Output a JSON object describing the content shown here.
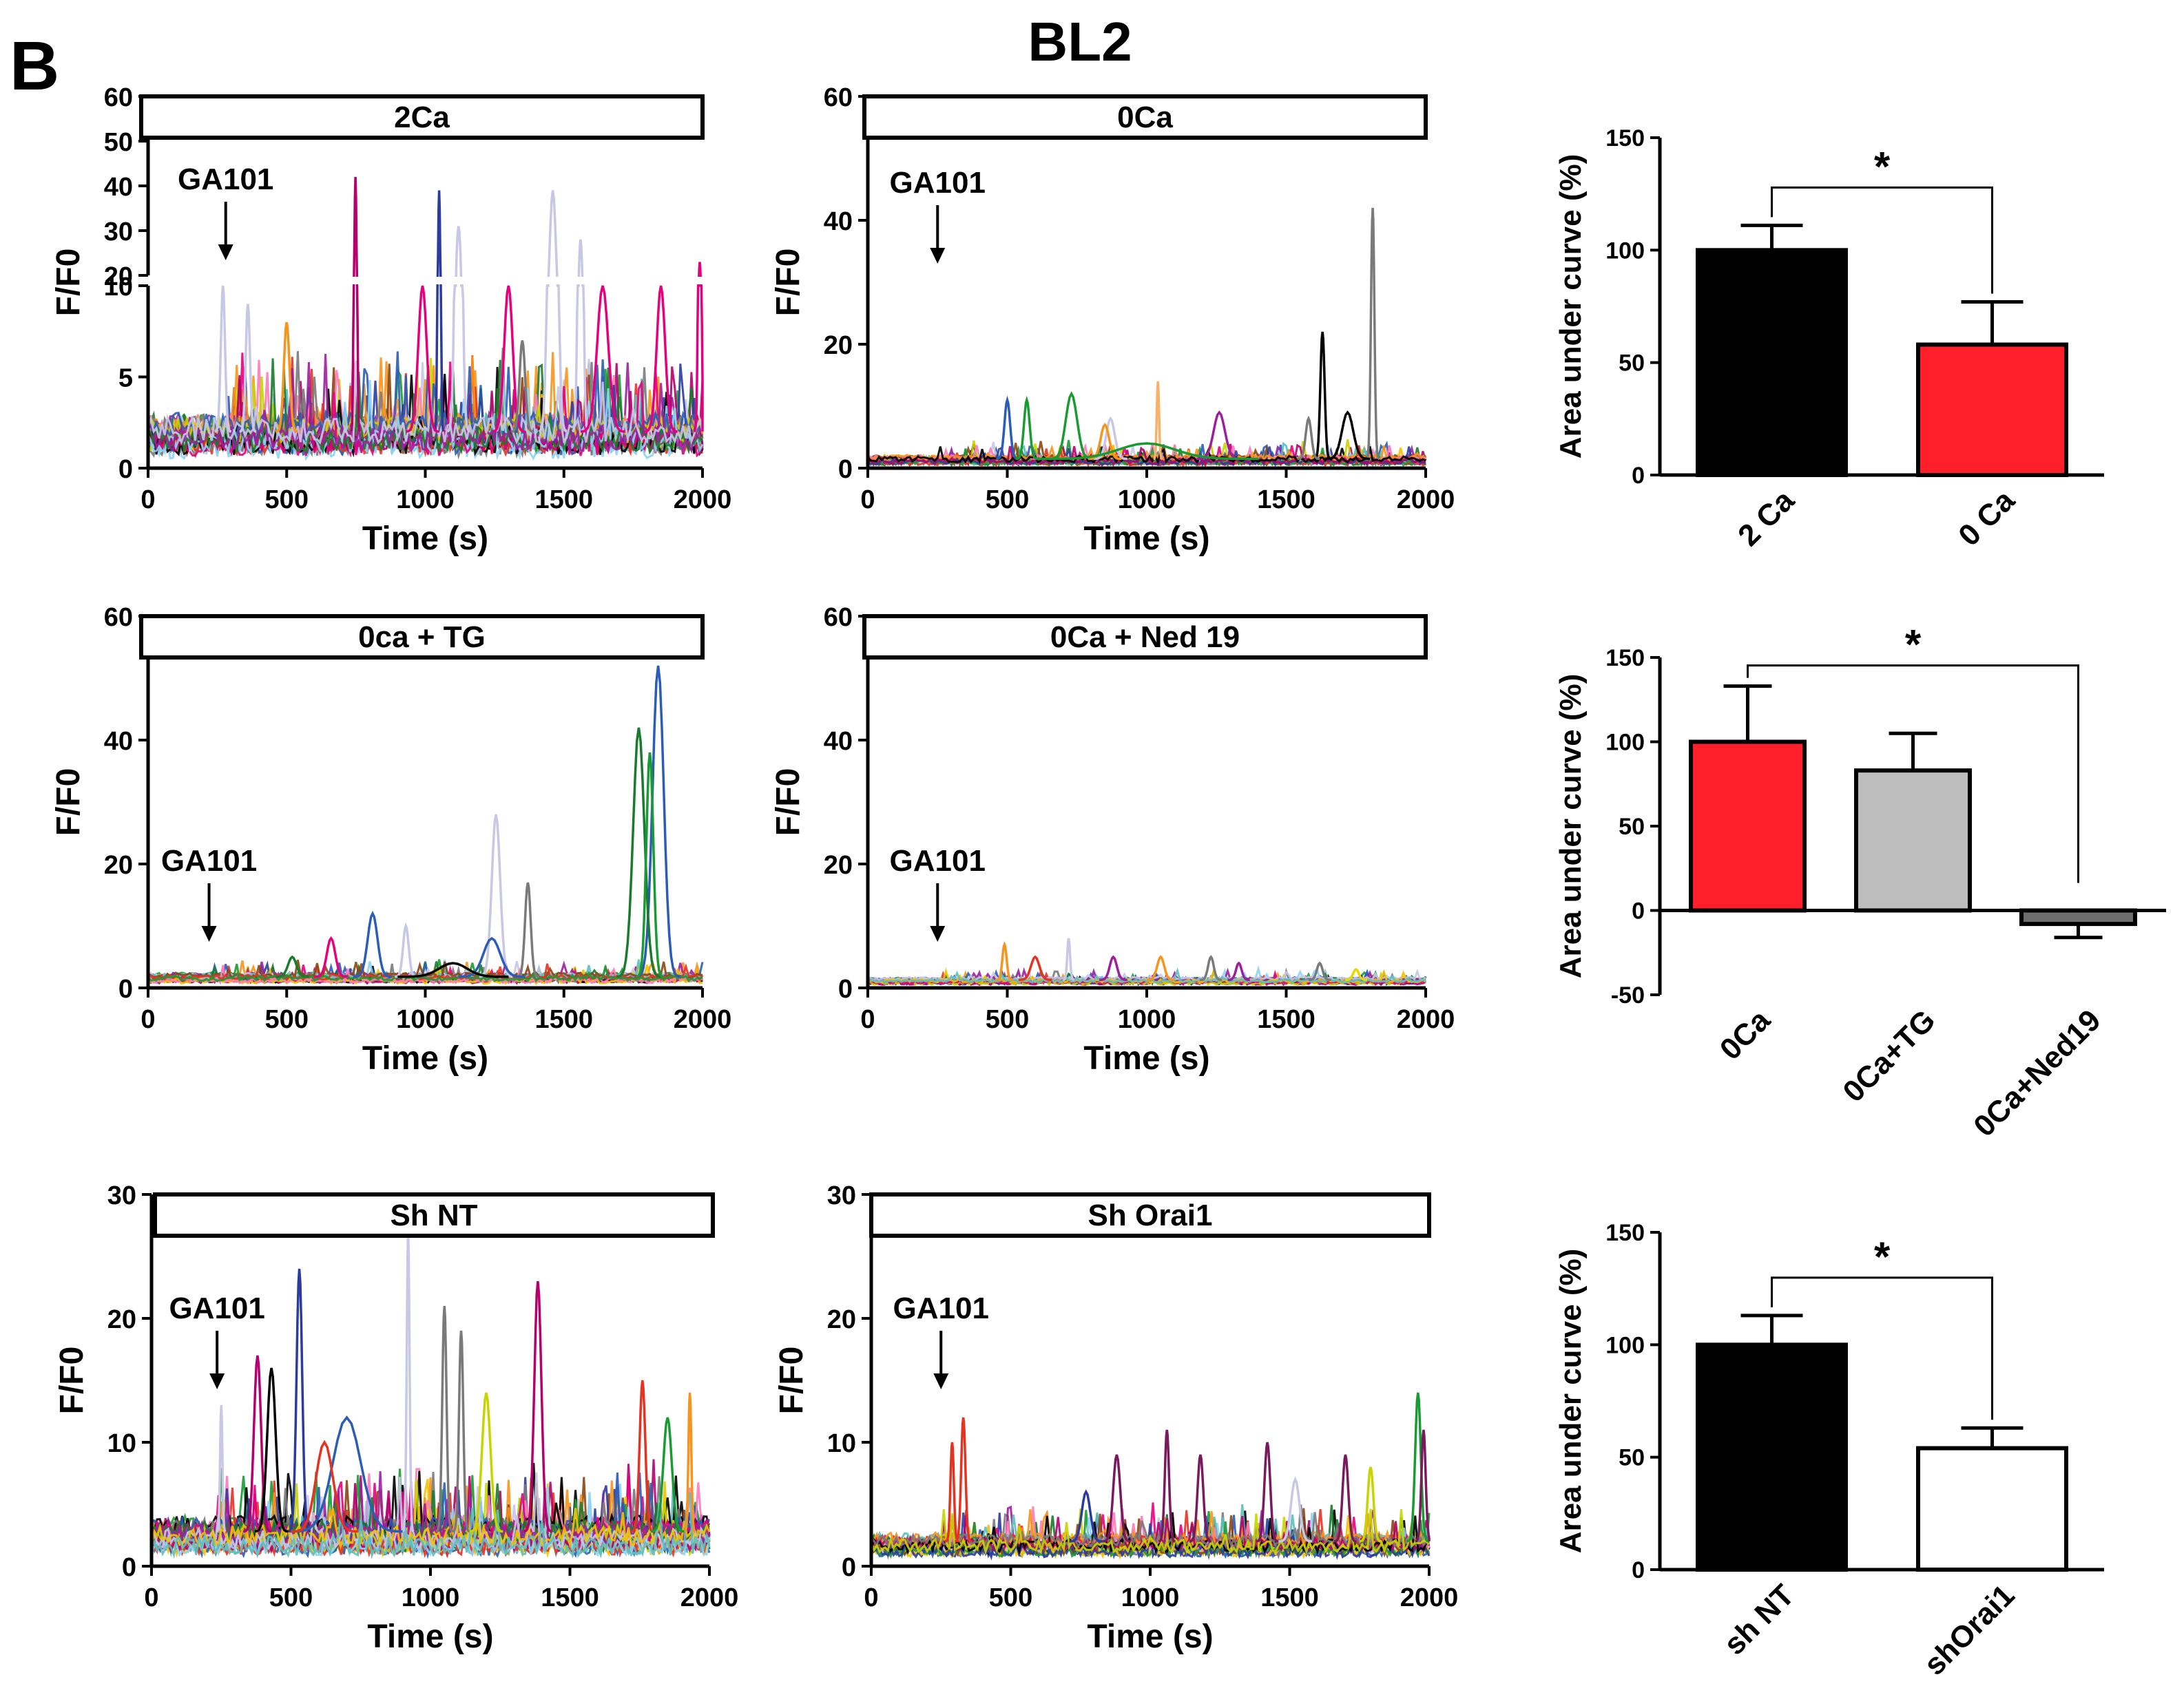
{
  "figure": {
    "panel_letter": "B",
    "title": "BL2"
  },
  "trace_panels": [
    {
      "id": "2ca",
      "label": "2Ca",
      "annotation": "GA101",
      "stimulus_time": 280,
      "xlabel": "Time (s)",
      "ylabel": "F/F0",
      "xticks": [
        "0",
        "500",
        "1000",
        "1500",
        "2000"
      ],
      "yticks_lower": [
        "0",
        "5",
        "10"
      ],
      "yticks_upper": [
        "20",
        "30",
        "40",
        "50",
        "60"
      ],
      "broken_axis": true,
      "lower_ylim": [
        0,
        10
      ],
      "upper_ylim": [
        20,
        60
      ],
      "n_traces": 32,
      "base_level": 2,
      "noise": 1.4,
      "peaks": [
        [
          748,
          42,
          "#b5006e",
          8
        ],
        [
          1050,
          39,
          "#2b3c9e",
          8
        ],
        [
          1120,
          31,
          "#c8c8e6",
          20
        ],
        [
          1460,
          39,
          "#c8c8e6",
          25
        ],
        [
          1560,
          28,
          "#c8c8e6",
          15
        ],
        [
          1990,
          23,
          "#e6007e",
          10
        ],
        [
          270,
          10,
          "#c8c8e6",
          15
        ],
        [
          990,
          10,
          "#e6007e",
          30
        ],
        [
          1300,
          10,
          "#e6007e",
          30
        ],
        [
          1640,
          10,
          "#e6007e",
          40
        ],
        [
          1850,
          10,
          "#e6007e",
          30
        ],
        [
          500,
          8,
          "#f7941d",
          20
        ],
        [
          1350,
          7,
          "#7a7a7a",
          20
        ],
        [
          360,
          9,
          "#c8c8e6",
          15
        ]
      ]
    },
    {
      "id": "0ca",
      "label": "0Ca",
      "annotation": "GA101",
      "stimulus_time": 250,
      "xlabel": "Time (s)",
      "ylabel": "F/F0",
      "xticks": [
        "0",
        "500",
        "1000",
        "1500",
        "2000"
      ],
      "yticks": [
        "0",
        "20",
        "40",
        "60"
      ],
      "ylim": [
        0,
        60
      ],
      "n_traces": 24,
      "base_level": 1.5,
      "noise": 0.9,
      "peaks": [
        [
          1810,
          42,
          "#7a7a7a",
          12
        ],
        [
          1630,
          22,
          "#000000",
          15
        ],
        [
          1040,
          14,
          "#f7b26a",
          8
        ],
        [
          730,
          12,
          "#199b33",
          40
        ],
        [
          500,
          11,
          "#2b5cb8",
          20
        ],
        [
          570,
          11,
          "#199b33",
          20
        ],
        [
          1260,
          9,
          "#9e1f9e",
          40
        ],
        [
          1580,
          8,
          "#7a7a7a",
          20
        ],
        [
          1720,
          9,
          "#000000",
          40
        ],
        [
          870,
          8,
          "#c8c8e6",
          30
        ],
        [
          850,
          7,
          "#f7941d",
          30
        ],
        [
          1000,
          4,
          "#199b33",
          200
        ]
      ]
    },
    {
      "id": "0ca-tg",
      "label": "0ca + TG",
      "annotation": "GA101",
      "stimulus_time": 220,
      "xlabel": "Time (s)",
      "ylabel": "F/F0",
      "xticks": [
        "0",
        "500",
        "1000",
        "1500",
        "2000"
      ],
      "yticks": [
        "0",
        "20",
        "40",
        "60"
      ],
      "ylim": [
        0,
        60
      ],
      "n_traces": 20,
      "base_level": 1.8,
      "noise": 0.8,
      "peaks": [
        [
          1840,
          52,
          "#2b5cb8",
          40
        ],
        [
          1770,
          42,
          "#1a7a2e",
          40
        ],
        [
          1810,
          38,
          "#199b33",
          25
        ],
        [
          1255,
          28,
          "#c8c8e6",
          30
        ],
        [
          1370,
          17,
          "#7a7a7a",
          20
        ],
        [
          810,
          12,
          "#2b5cb8",
          35
        ],
        [
          930,
          10,
          "#c8c8e6",
          20
        ],
        [
          1240,
          8,
          "#2b5cb8",
          60
        ],
        [
          660,
          8,
          "#e6007e",
          30
        ],
        [
          520,
          5,
          "#1a7a2e",
          30
        ],
        [
          1100,
          4,
          "#000000",
          100
        ]
      ]
    },
    {
      "id": "0ca-ned19",
      "label": "0Ca + Ned 19",
      "annotation": "GA101",
      "stimulus_time": 250,
      "xlabel": "Time (s)",
      "ylabel": "F/F0",
      "xticks": [
        "0",
        "500",
        "1000",
        "1500",
        "2000"
      ],
      "yticks": [
        "0",
        "20",
        "40",
        "60"
      ],
      "ylim": [
        0,
        60
      ],
      "n_traces": 16,
      "base_level": 1.3,
      "noise": 0.5,
      "peaks": [
        [
          720,
          8,
          "#c8c8e6",
          10
        ],
        [
          490,
          7,
          "#f7941d",
          15
        ],
        [
          880,
          5,
          "#9e1f9e",
          25
        ],
        [
          1050,
          5,
          "#f7941d",
          25
        ],
        [
          1230,
          5,
          "#7a7a7a",
          20
        ],
        [
          1330,
          4,
          "#9e1f9e",
          20
        ],
        [
          1620,
          4,
          "#7a7a7a",
          20
        ],
        [
          1750,
          3,
          "#e6d800",
          20
        ],
        [
          600,
          5,
          "#e63222",
          30
        ]
      ]
    },
    {
      "id": "sh-nt",
      "label": "Sh NT",
      "annotation": "GA101",
      "stimulus_time": 235,
      "xlabel": "Time (s)",
      "ylabel": "F/F0",
      "xticks": [
        "0",
        "500",
        "1000",
        "1500",
        "2000"
      ],
      "yticks": [
        "0",
        "10",
        "20",
        "30"
      ],
      "ylim": [
        0,
        30
      ],
      "n_traces": 34,
      "base_level": 2.8,
      "noise": 1.6,
      "peaks": [
        [
          920,
          27,
          "#c8c8e6",
          10
        ],
        [
          530,
          24,
          "#2b3c9e",
          20
        ],
        [
          1385,
          23,
          "#b5006e",
          25
        ],
        [
          1050,
          21,
          "#7a7a7a",
          15
        ],
        [
          1110,
          19,
          "#7a7a7a",
          15
        ],
        [
          380,
          17,
          "#b5006e",
          25
        ],
        [
          430,
          16,
          "#000000",
          30
        ],
        [
          250,
          13,
          "#c8c8e6",
          8
        ],
        [
          1760,
          15,
          "#e63222",
          20
        ],
        [
          1930,
          14,
          "#f7941d",
          10
        ],
        [
          1200,
          14,
          "#c8d400",
          30
        ],
        [
          700,
          12,
          "#2b5cb8",
          100
        ],
        [
          1850,
          12,
          "#199b33",
          30
        ],
        [
          620,
          10,
          "#e63222",
          60
        ]
      ]
    },
    {
      "id": "sh-orai1",
      "label": "Sh Orai1",
      "annotation": "GA101",
      "stimulus_time": 250,
      "xlabel": "Time (s)",
      "ylabel": "F/F0",
      "xticks": [
        "0",
        "500",
        "1000",
        "1500",
        "2000"
      ],
      "yticks": [
        "0",
        "10",
        "20",
        "30"
      ],
      "ylim": [
        0,
        30
      ],
      "n_traces": 26,
      "base_level": 2.0,
      "noise": 1.0,
      "peaks": [
        [
          330,
          12,
          "#e63222",
          15
        ],
        [
          1960,
          14,
          "#199b33",
          20
        ],
        [
          290,
          10,
          "#e63222",
          12
        ],
        [
          1060,
          11,
          "#7a1a5e",
          15
        ],
        [
          1420,
          10,
          "#7a1a5e",
          20
        ],
        [
          1700,
          9,
          "#7a1a5e",
          20
        ],
        [
          1180,
          9,
          "#7a1a5e",
          20
        ],
        [
          880,
          9,
          "#7a1a5e",
          25
        ],
        [
          1520,
          7,
          "#c8c8e6",
          30
        ],
        [
          1790,
          8,
          "#c8d400",
          20
        ],
        [
          1980,
          11,
          "#7a1a5e",
          15
        ],
        [
          770,
          6,
          "#2b3c9e",
          30
        ]
      ]
    }
  ],
  "chart_data": [
    {
      "type": "bar",
      "id": "auc-ca",
      "categories": [
        "2 Ca",
        "0 Ca"
      ],
      "values": [
        100,
        58
      ],
      "errors": [
        11,
        19
      ],
      "colors": [
        "#000000",
        "#ff1f2a"
      ],
      "ylabel": "Area under curve (%)",
      "yticks": [
        "0",
        "50",
        "100",
        "150"
      ],
      "ylim": [
        0,
        150
      ],
      "significance": {
        "from": 0,
        "to": 1,
        "label": "*"
      }
    },
    {
      "type": "bar",
      "id": "auc-tg-ned",
      "categories": [
        "0Ca",
        "0Ca+TG",
        "0Ca+Ned19"
      ],
      "values": [
        100,
        83,
        -8
      ],
      "errors": [
        33,
        22,
        8
      ],
      "colors": [
        "#ff1f2a",
        "#bdbdbd",
        "#6e6e6e"
      ],
      "ylabel": "Area under curve (%)",
      "yticks": [
        "-50",
        "0",
        "50",
        "100",
        "150"
      ],
      "ylim": [
        -50,
        150
      ],
      "significance": {
        "from": 0,
        "to": 2,
        "label": "*"
      }
    },
    {
      "type": "bar",
      "id": "auc-sh",
      "categories": [
        "sh NT",
        "shOrai1"
      ],
      "values": [
        100,
        54
      ],
      "errors": [
        13,
        9
      ],
      "colors": [
        "#000000",
        "#ffffff"
      ],
      "ylabel": "Area under curve (%)",
      "yticks": [
        "0",
        "50",
        "100",
        "150"
      ],
      "ylim": [
        0,
        150
      ],
      "significance": {
        "from": 0,
        "to": 1,
        "label": "*"
      }
    }
  ],
  "trace_palette": [
    "#e63222",
    "#199b33",
    "#2b3c9e",
    "#f7941d",
    "#b5006e",
    "#000000",
    "#7a7a7a",
    "#c8d400",
    "#2b5cb8",
    "#e6007e",
    "#8fd3f5",
    "#1a7a2e",
    "#9e1f9e",
    "#c8c8e6",
    "#f2c200",
    "#5fbfbf",
    "#8b4513",
    "#ff7ab8"
  ]
}
